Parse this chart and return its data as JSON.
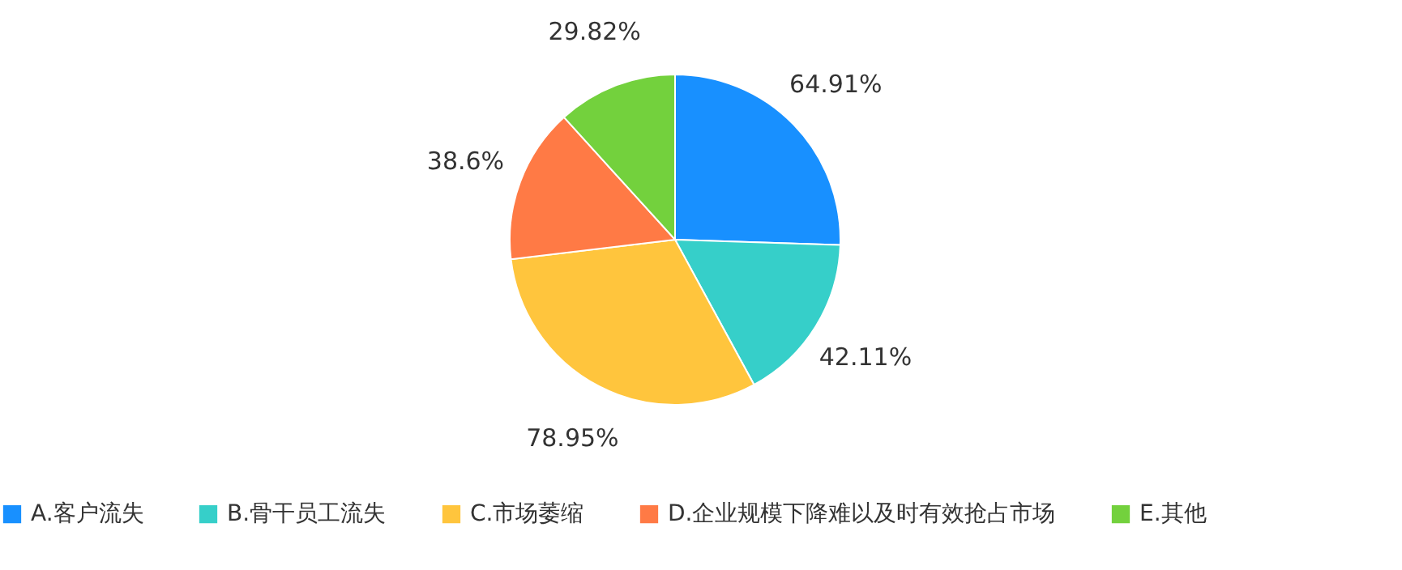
{
  "chart_data": {
    "type": "pie",
    "categories": [
      "A.客户流失",
      "B.骨干员工流失",
      "C.市场萎缩",
      "D.企业规模下降难以及时有效抢占市场",
      "E.其他"
    ],
    "values": [
      64.91,
      42.11,
      78.95,
      38.6,
      29.82
    ],
    "value_labels": [
      "64.91%",
      "42.11%",
      "78.95%",
      "38.6%",
      "29.82%"
    ],
    "colors": [
      "#1890ff",
      "#36cfc9",
      "#ffc53d",
      "#ff7a45",
      "#73d13d"
    ],
    "legend": "bottom"
  }
}
